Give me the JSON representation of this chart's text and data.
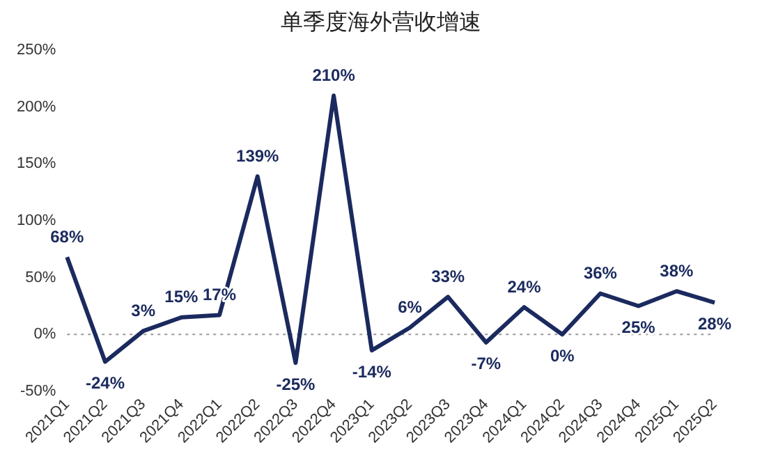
{
  "chart_data": {
    "type": "line",
    "title": "单季度海外营收增速",
    "categories": [
      "2021Q1",
      "2021Q2",
      "2021Q3",
      "2021Q4",
      "2022Q1",
      "2022Q2",
      "2022Q3",
      "2022Q4",
      "2023Q1",
      "2023Q2",
      "2023Q3",
      "2023Q4",
      "2024Q1",
      "2024Q2",
      "2024Q3",
      "2024Q4",
      "2025Q1",
      "2025Q2"
    ],
    "series": [
      {
        "color": "#1b2a5e",
        "values": [
          68,
          -24,
          3,
          15,
          17,
          139,
          -25,
          210,
          -14,
          6,
          33,
          -7,
          24,
          0,
          36,
          25,
          38,
          28
        ],
        "value_labels": [
          "68%",
          "-24%",
          "3%",
          "15%",
          "17%",
          "139%",
          "-25%",
          "210%",
          "-14%",
          "6%",
          "33%",
          "-7%",
          "24%",
          "0%",
          "36%",
          "25%",
          "38%",
          "28%"
        ]
      }
    ],
    "ylim": [
      -50,
      250
    ],
    "yticks": [
      {
        "value": -50,
        "label": "-50%"
      },
      {
        "value": 0,
        "label": "0%"
      },
      {
        "value": 50,
        "label": "50%"
      },
      {
        "value": 100,
        "label": "100%"
      },
      {
        "value": 150,
        "label": "150%"
      },
      {
        "value": 200,
        "label": "200%"
      },
      {
        "value": 250,
        "label": "250%"
      }
    ],
    "ref_lines": [
      {
        "axis": "y",
        "value": 0,
        "color": "#999999",
        "line_style": "dotted"
      }
    ],
    "grid": false,
    "legend": false,
    "marker": "none",
    "line_style": "solid"
  }
}
